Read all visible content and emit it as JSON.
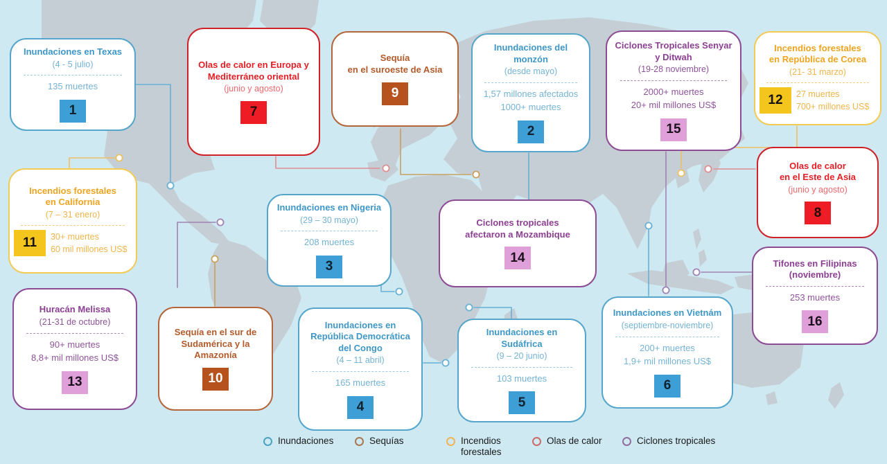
{
  "palette": {
    "inundaciones": {
      "border": "#55a6ca",
      "title": "#3e97c6",
      "muted": "#74b3d4",
      "badge_bg": "#3e9ed6",
      "badge_fg": "#10222e",
      "line": "#67b0d3"
    },
    "sequias": {
      "border": "#b4663a",
      "title": "#b25a2a",
      "muted": "#b56a3f",
      "badge_bg": "#b5521d",
      "badge_fg": "#ffffff",
      "line": "#c9a05f"
    },
    "incendios": {
      "border": "#f2ca56",
      "title": "#eda41f",
      "muted": "#f0b54a",
      "badge_bg": "#f4c51d",
      "badge_fg": "#161209",
      "line": "#eec063"
    },
    "olas": {
      "border": "#d02127",
      "title": "#e31e25",
      "muted": "#ee686c",
      "badge_bg": "#ee1c24",
      "badge_fg": "#230c0c",
      "line": "#e08d91"
    },
    "ciclones": {
      "border": "#8d4b95",
      "title": "#8c3f92",
      "muted": "#8f539a",
      "badge_bg": "#dfa0da",
      "badge_fg": "#1c101c",
      "line": "#a182b2"
    }
  },
  "cards": [
    {
      "id": 1,
      "category": "inundaciones",
      "title": "Inundaciones en Texas",
      "date": "(4 - 5 julio)",
      "separator": true,
      "stats": [
        "135 muertes"
      ],
      "badge": "1",
      "badge_position": "bottom"
    },
    {
      "id": 2,
      "category": "inundaciones",
      "title": "Inundaciones del monzón",
      "date": "(desde mayo)",
      "separator": true,
      "stats": [
        "1,57 millones afectados",
        "1000+ muertes"
      ],
      "badge": "2",
      "badge_position": "bottom"
    },
    {
      "id": 3,
      "category": "inundaciones",
      "title": "Inundaciones en Nigeria",
      "date": "(29 – 30 mayo)",
      "separator": true,
      "stats": [
        "208 muertes"
      ],
      "badge": "3",
      "badge_position": "bottom"
    },
    {
      "id": 4,
      "category": "inundaciones",
      "title": "Inundaciones en\nRepública Democrática\ndel Congo",
      "date": "(4 – 11 abril)",
      "separator": true,
      "stats": [
        "165 muertes"
      ],
      "badge": "4",
      "badge_position": "bottom"
    },
    {
      "id": 5,
      "category": "inundaciones",
      "title": "Inundaciones en\nSudáfrica",
      "date": "(9 – 20 junio)",
      "separator": true,
      "stats": [
        "103 muertes"
      ],
      "badge": "5",
      "badge_position": "bottom"
    },
    {
      "id": 6,
      "category": "inundaciones",
      "title": "Inundaciones en Vietnám",
      "date": "(septiembre-noviembre)",
      "separator": true,
      "stats": [
        "200+ muertes",
        "1,9+ mil millones US$"
      ],
      "badge": "6",
      "badge_position": "bottom"
    },
    {
      "id": 7,
      "category": "olas",
      "title": "Olas de calor en Europa y\nMediterráneo oriental",
      "date": "(junio y agosto)",
      "separator": false,
      "stats": [],
      "badge": "7",
      "badge_position": "bottom"
    },
    {
      "id": 8,
      "category": "olas",
      "title": "Olas de calor\nen el Este de Asia",
      "date": "(junio y agosto)",
      "separator": false,
      "stats": [],
      "badge": "8",
      "badge_position": "bottom"
    },
    {
      "id": 9,
      "category": "sequias",
      "title": "Sequía\nen el suroeste de Asia",
      "date": "",
      "separator": false,
      "stats": [],
      "badge": "9",
      "badge_position": "bottom"
    },
    {
      "id": 10,
      "category": "sequias",
      "title": "Sequía en el sur de\nSudamérica y la\nAmazonía",
      "date": "",
      "separator": false,
      "stats": [],
      "badge": "10",
      "badge_position": "bottom"
    },
    {
      "id": 11,
      "category": "incendios",
      "title": "Incendios forestales\nen California",
      "date": "(7 – 31 enero)",
      "separator": true,
      "stats": [
        "30+ muertes",
        "60 mil millones US$"
      ],
      "badge": "11",
      "badge_position": "left"
    },
    {
      "id": 12,
      "category": "incendios",
      "title": "Incendios forestales\nen República de Corea",
      "date": "(21- 31 marzo)",
      "separator": true,
      "stats": [
        "27 muertes",
        "700+ millones US$"
      ],
      "badge": "12",
      "badge_position": "left"
    },
    {
      "id": 13,
      "category": "ciclones",
      "title": "Huracán Melissa",
      "date": "(21-31 de octubre)",
      "separator": true,
      "stats": [
        "90+ muertes",
        "8,8+ mil millones US$"
      ],
      "badge": "13",
      "badge_position": "bottom"
    },
    {
      "id": 14,
      "category": "ciclones",
      "title": "Ciclones tropicales\nafectaron a Mozambique",
      "date": "",
      "separator": false,
      "stats": [],
      "badge": "14",
      "badge_position": "bottom"
    },
    {
      "id": 15,
      "category": "ciclones",
      "title": "Ciclones Tropicales Senyar\ny Ditwah",
      "date": "(19-28 noviembre)",
      "separator": true,
      "stats": [
        "2000+ muertes",
        "20+ mil millones US$"
      ],
      "badge": "15",
      "badge_position": "bottom"
    },
    {
      "id": 16,
      "category": "ciclones",
      "title": "Tifones en Filipinas\n(noviembre)",
      "date": "",
      "separator": true,
      "stats": [
        "253 muertes"
      ],
      "badge": "16",
      "badge_position": "bottom"
    }
  ],
  "legend": {
    "items": [
      {
        "label": "Inundaciones",
        "color": "#4aa2c0"
      },
      {
        "label": "Sequías",
        "color": "#a8784e"
      },
      {
        "label": "Incendios\nforestales",
        "color": "#f0b355"
      },
      {
        "label": "Olas de calor",
        "color": "#cb6a68"
      },
      {
        "label": "Ciclones tropicales",
        "color": "#8f6d9f"
      }
    ]
  },
  "map": {
    "ocean_color": "#cfe9f2",
    "land_color": "#c5ced5"
  }
}
